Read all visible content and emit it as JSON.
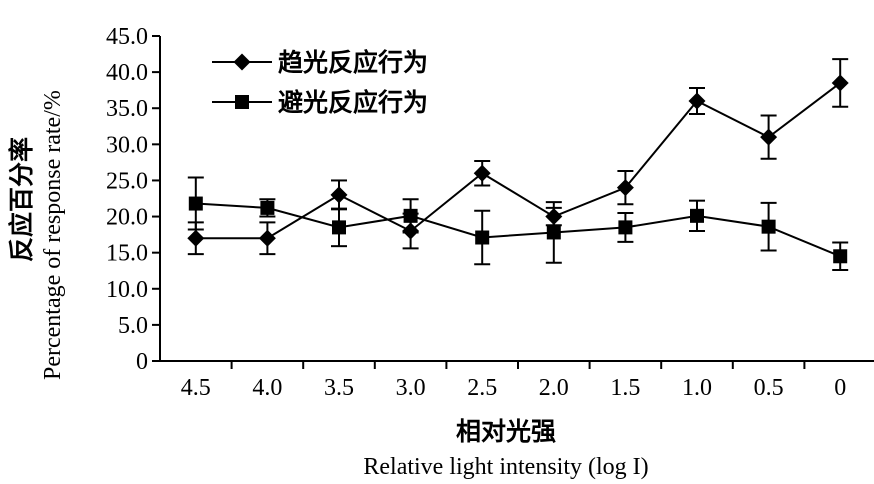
{
  "chart_data": {
    "type": "line",
    "x": [
      "4.5",
      "4.0",
      "3.5",
      "3.0",
      "2.5",
      "2.0",
      "1.5",
      "1.0",
      "0.5",
      "0"
    ],
    "ylabel_cn": "反应百分率",
    "ylabel_en": "Percentage of response rate/%",
    "xlabel_cn": "相对光强",
    "xlabel_en": "Relative light intensity (log I)",
    "ylim": [
      0,
      45
    ],
    "yticks": [
      "0",
      "5.0",
      "10.0",
      "15.0",
      "20.0",
      "25.0",
      "30.0",
      "35.0",
      "40.0",
      "45.0"
    ],
    "grid": false,
    "legend_position": "top-left",
    "series": [
      {
        "name": "趋光反应行为",
        "marker": "diamond",
        "values": [
          17.0,
          17.0,
          23.0,
          18.0,
          26.0,
          20.0,
          24.0,
          36.0,
          31.0,
          38.5
        ],
        "errors": [
          2.2,
          2.2,
          2.0,
          2.4,
          1.7,
          1.2,
          2.3,
          1.8,
          3.0,
          3.3
        ]
      },
      {
        "name": "避光反应行为",
        "marker": "square",
        "values": [
          21.8,
          21.2,
          18.5,
          20.1,
          17.1,
          17.8,
          18.5,
          20.1,
          18.6,
          14.5
        ],
        "errors": [
          3.6,
          1.2,
          2.6,
          2.3,
          3.7,
          4.2,
          2.0,
          2.1,
          3.3,
          1.9
        ]
      }
    ]
  }
}
